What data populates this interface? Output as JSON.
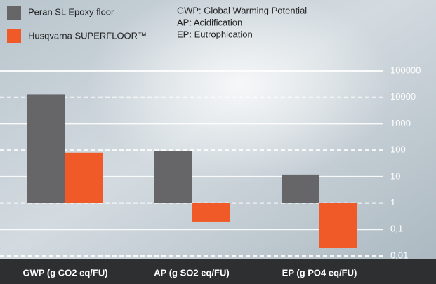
{
  "chart_data": {
    "type": "bar",
    "log_scale": true,
    "grid": true,
    "categories": [
      "GWP (g CO2 eq/FU)",
      "AP (g SO2 eq/FU)",
      "EP (g PO4 eq/FU)"
    ],
    "series": [
      {
        "name": "Peran SL Epoxy floor",
        "color": "#666668",
        "values": [
          13000,
          90,
          12
        ]
      },
      {
        "name": "Husqvarna SUPERFLOOR™",
        "color": "#f05a28",
        "values": [
          80,
          0.2,
          0.02
        ]
      }
    ],
    "notes": [
      "GWP: Global Warming Potential",
      "AP: Acidification",
      "EP: Eutrophication"
    ],
    "ylim": [
      0.01,
      100000
    ],
    "yticks": [
      100000,
      10000,
      1000,
      100,
      10,
      1,
      {
        "value": 0.1,
        "label": "0,1"
      },
      {
        "value": 0.01,
        "label": "0,01"
      }
    ]
  }
}
